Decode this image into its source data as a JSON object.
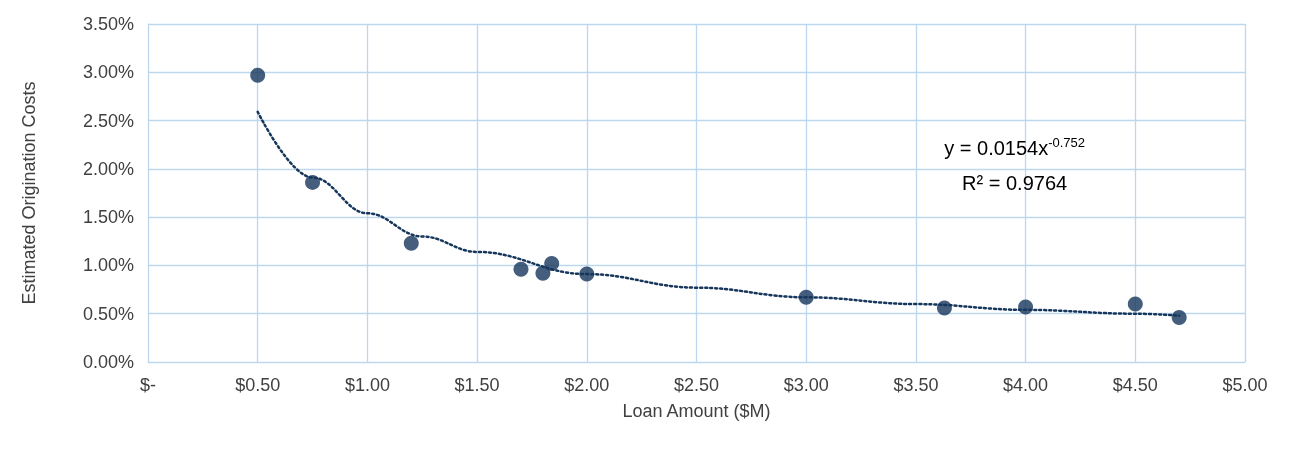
{
  "chart_data": {
    "type": "scatter",
    "xlabel": "Loan Amount ($M)",
    "ylabel": "Estimated Origination Costs",
    "xlim": [
      0,
      5
    ],
    "xticks": [
      {
        "value": 0,
        "label": "$-"
      },
      {
        "value": 0.5,
        "label": "$0.50"
      },
      {
        "value": 1,
        "label": "$1.00"
      },
      {
        "value": 1.5,
        "label": "$1.50"
      },
      {
        "value": 2,
        "label": "$2.00"
      },
      {
        "value": 2.5,
        "label": "$2.50"
      },
      {
        "value": 3,
        "label": "$3.00"
      },
      {
        "value": 3.5,
        "label": "$3.50"
      },
      {
        "value": 4,
        "label": "$4.00"
      },
      {
        "value": 4.5,
        "label": "$4.50"
      },
      {
        "value": 5,
        "label": "$5.00"
      }
    ],
    "ylim": [
      0,
      3.5
    ],
    "yticks": [
      {
        "value": 0,
        "label": "0.00%"
      },
      {
        "value": 0.5,
        "label": "0.50%"
      },
      {
        "value": 1,
        "label": "1.00%"
      },
      {
        "value": 1.5,
        "label": "1.50%"
      },
      {
        "value": 2,
        "label": "2.00%"
      },
      {
        "value": 2.5,
        "label": "2.50%"
      },
      {
        "value": 3,
        "label": "3.00%"
      },
      {
        "value": 3.5,
        "label": "3.50%"
      }
    ],
    "grid": true,
    "marker": "circle",
    "series": [
      {
        "color": "#16365c",
        "x": [
          0.5,
          0.75,
          1.2,
          1.7,
          1.8,
          1.84,
          2.0,
          3.0,
          3.63,
          4.0,
          4.5,
          4.7
        ],
        "values": [
          2.97,
          1.86,
          1.23,
          0.96,
          0.92,
          1.02,
          0.91,
          0.67,
          0.56,
          0.57,
          0.6,
          0.46
        ]
      },
      {
        "type": "line",
        "color": "#16365c",
        "line_style": "dotted",
        "marker": "none",
        "x": [
          0.5,
          0.75,
          1,
          1.25,
          1.5,
          2,
          2.5,
          3,
          3.5,
          4,
          4.5,
          4.7
        ],
        "values": [
          2.59,
          1.91,
          1.54,
          1.3,
          1.14,
          0.91,
          0.77,
          0.67,
          0.6,
          0.54,
          0.5,
          0.48
        ]
      }
    ],
    "annotations": [
      "y = 0.0154x$^{-0.752}$",
      "R² = 0.9764"
    ]
  }
}
